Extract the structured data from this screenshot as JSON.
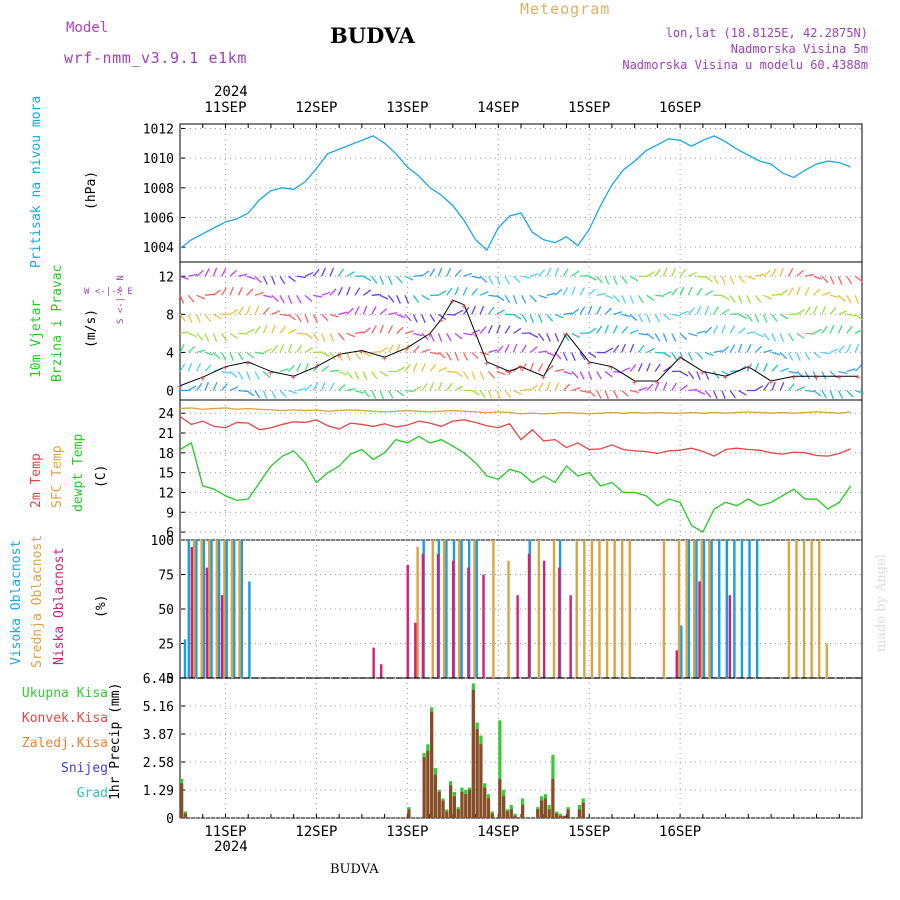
{
  "header": {
    "model_label": "Model",
    "model_name": "wrf-nmm_v3.9.1 e1km",
    "station": "BUDVA",
    "meteogram": "Meteogram",
    "lonlat": "lon,lat (18.8125E, 42.2875N)",
    "elevation": "Nadmorska Visina 5m",
    "model_elevation": "Nadmorska Visina u modelu 60.4388m",
    "year_top": "2024",
    "year_bottom": "2024",
    "footer_station": "BUDVA",
    "credit": "made by Angel"
  },
  "colors": {
    "pressure": "#1aa6e6",
    "temp2m": "#e84545",
    "sfc_temp": "#d9a441",
    "dewpoint": "#22cc22",
    "cloud_high": "#1a9be6",
    "cloud_mid": "#d9a441",
    "cloud_low": "#d0207a",
    "precip_total": "#33cc33",
    "precip_conv": "#8b4a2a",
    "model_text": "#b040c8",
    "meteogram_text": "#e0b060",
    "info_text": "#a040c0"
  },
  "panels": {
    "pressure": {
      "label1": "Pritisak na nivou mora",
      "unit": "(hPa)"
    },
    "wind": {
      "label1": "10m Vjetar",
      "label2": "Brzina i Pravac",
      "unit": "(m/s)",
      "compass": "W <-|-> E",
      "compass_ns": "S <-|-> N"
    },
    "temp": {
      "label1": "2m Temp",
      "label2": "SFC Temp",
      "label3": "dewpt Temp",
      "unit": "(C)"
    },
    "cloud": {
      "label1": "Visoka Oblacnost",
      "label2": "Srednja Oblacnost",
      "label3": "Niska Oblacnost",
      "unit": "(%)"
    },
    "precip": {
      "unit": "1hr Precip (mm)",
      "legend": [
        "Ukupna Kisa",
        "Konvek.Kisa",
        "Zaledj.Kisa",
        "Snijeg",
        "Grad"
      ],
      "legend_colors": [
        "#33cc33",
        "#e84545",
        "#f08030",
        "#4040e0",
        "#30c0c0"
      ]
    }
  },
  "chart_data": {
    "type": "line",
    "x_unit": "hours from 2024-09-10 12:00 UTC",
    "days": [
      "11SEP",
      "12SEP",
      "13SEP",
      "14SEP",
      "15SEP",
      "16SEP"
    ],
    "pressure": {
      "ylim": [
        1003,
        1012.3
      ],
      "ticks": [
        "1004",
        "1006",
        "1008",
        "1010",
        "1012"
      ],
      "x": [
        0,
        3,
        6,
        9,
        12,
        15,
        18,
        21,
        24,
        27,
        30,
        33,
        36,
        39,
        42,
        45,
        48,
        51,
        54,
        57,
        60,
        63,
        66,
        69,
        72,
        75,
        78,
        81,
        84,
        87,
        90,
        93,
        96,
        99,
        102,
        105,
        108,
        111,
        114,
        117,
        120,
        123,
        126,
        129,
        132,
        135,
        138,
        141,
        144,
        147,
        150,
        153,
        156,
        159,
        162,
        165,
        168,
        171,
        174,
        177
      ],
      "y": [
        1003.9,
        1004.5,
        1004.9,
        1005.3,
        1005.7,
        1005.9,
        1006.3,
        1007.2,
        1007.8,
        1008.0,
        1007.9,
        1008.4,
        1009.3,
        1010.3,
        1010.6,
        1010.9,
        1011.2,
        1011.5,
        1011.0,
        1010.3,
        1009.4,
        1008.8,
        1008.0,
        1007.5,
        1006.8,
        1005.8,
        1004.5,
        1003.8,
        1005.3,
        1006.1,
        1006.3,
        1005.0,
        1004.5,
        1004.3,
        1004.7,
        1004.1,
        1005.2,
        1006.8,
        1008.2,
        1009.2,
        1009.8,
        1010.5,
        1010.9,
        1011.3,
        1011.2,
        1010.8,
        1011.2,
        1011.5,
        1011.1,
        1010.6,
        1010.2,
        1009.8,
        1009.6,
        1009.0,
        1008.7,
        1009.2,
        1009.6,
        1009.8,
        1009.7,
        1009.4
      ]
    },
    "wind": {
      "ylim": [
        -1,
        13.5
      ],
      "ticks": [
        "0",
        "4",
        "8",
        "12"
      ],
      "x": [
        0,
        6,
        12,
        18,
        24,
        30,
        36,
        42,
        48,
        54,
        60,
        66,
        69,
        72,
        75,
        78,
        81,
        84,
        87,
        90,
        96,
        102,
        108,
        114,
        120,
        126,
        132,
        138,
        144,
        150,
        156,
        162,
        168,
        174,
        179
      ],
      "y": [
        0.5,
        1.4,
        2.5,
        3.0,
        2.0,
        1.5,
        2.5,
        3.8,
        4.2,
        3.5,
        4.5,
        6.0,
        7.5,
        9.5,
        9.0,
        6.0,
        3.0,
        2.5,
        2.0,
        2.5,
        1.5,
        6.0,
        3.0,
        2.5,
        1.0,
        1.0,
        3.5,
        2.0,
        1.5,
        2.5,
        1.0,
        1.5,
        1.5,
        1.5,
        1.5
      ],
      "arrow_colors": [
        "#33a0ff",
        "#50d0ff",
        "#40e080",
        "#a0e040",
        "#f0c040",
        "#ff6060",
        "#c040ff",
        "#6040ff",
        "#20c0d0"
      ]
    },
    "temperature": {
      "ylim": [
        4.8,
        26
      ],
      "ticks": [
        "6",
        "9",
        "12",
        "15",
        "18",
        "21",
        "24"
      ],
      "x": [
        0,
        3,
        6,
        9,
        12,
        15,
        18,
        21,
        24,
        27,
        30,
        33,
        36,
        39,
        42,
        45,
        48,
        51,
        54,
        57,
        60,
        63,
        66,
        69,
        72,
        75,
        78,
        81,
        84,
        87,
        90,
        93,
        96,
        99,
        102,
        105,
        108,
        111,
        114,
        117,
        120,
        123,
        126,
        129,
        132,
        135,
        138,
        141,
        144,
        147,
        150,
        153,
        156,
        159,
        162,
        165,
        168,
        171,
        174,
        177
      ],
      "temp2m": [
        23.5,
        22.3,
        22.8,
        22.0,
        21.8,
        22.6,
        22.5,
        21.5,
        21.8,
        22.3,
        22.7,
        22.6,
        23.0,
        22.1,
        21.6,
        22.5,
        22.3,
        22.0,
        22.4,
        21.9,
        22.2,
        22.8,
        22.5,
        22.0,
        22.8,
        23.0,
        22.6,
        22.1,
        21.8,
        22.4,
        20.0,
        21.5,
        19.8,
        20.0,
        18.8,
        19.5,
        18.5,
        18.6,
        19.2,
        18.5,
        18.3,
        18.2,
        17.9,
        18.3,
        18.4,
        18.7,
        18.2,
        17.5,
        18.5,
        18.7,
        18.5,
        18.4,
        18.0,
        17.8,
        18.1,
        18.0,
        17.6,
        17.5,
        17.9,
        18.6
      ],
      "sfc_temp": [
        24.7,
        24.8,
        24.6,
        24.7,
        24.8,
        24.6,
        24.7,
        24.6,
        24.5,
        24.4,
        24.5,
        24.4,
        24.5,
        24.3,
        24.4,
        24.5,
        24.4,
        24.3,
        24.2,
        24.3,
        24.4,
        24.3,
        24.2,
        24.3,
        24.4,
        24.3,
        24.2,
        24.1,
        24.2,
        24.1,
        23.9,
        24.0,
        23.9,
        24.0,
        24.1,
        24.0,
        23.9,
        24.0,
        24.1,
        24.0,
        24.1,
        24.0,
        24.1,
        24.0,
        24.0,
        24.1,
        24.0,
        24.1,
        24.0,
        24.1,
        24.2,
        24.1,
        24.0,
        24.1,
        24.0,
        24.1,
        24.2,
        24.1,
        24.0,
        24.2
      ],
      "dewpoint": [
        18.5,
        19.5,
        13.0,
        12.5,
        11.5,
        10.8,
        11.0,
        13.5,
        16.0,
        17.5,
        18.3,
        16.5,
        13.5,
        15.0,
        16.0,
        17.8,
        18.5,
        17.0,
        18.0,
        20.0,
        19.5,
        20.5,
        19.5,
        20.0,
        19.0,
        18.0,
        16.5,
        14.5,
        14.0,
        15.5,
        15.0,
        13.5,
        14.5,
        13.5,
        16.0,
        14.5,
        15.0,
        13.0,
        13.5,
        12.0,
        12.0,
        11.5,
        10.0,
        11.0,
        10.5,
        7.0,
        6.0,
        9.5,
        10.5,
        10.0,
        11.0,
        10.0,
        10.5,
        11.5,
        12.5,
        11.0,
        11.0,
        9.5,
        10.5,
        13.0
      ]
    },
    "cloud": {
      "ylim": [
        0,
        100
      ],
      "ticks": [
        "0",
        "25",
        "50",
        "75",
        "100"
      ],
      "high": [
        {
          "x": 1,
          "v": 28
        },
        {
          "x": 2,
          "v": 100
        },
        {
          "x": 4,
          "v": 100
        },
        {
          "x": 6,
          "v": 100
        },
        {
          "x": 8,
          "v": 100
        },
        {
          "x": 10,
          "v": 100
        },
        {
          "x": 12,
          "v": 100
        },
        {
          "x": 14,
          "v": 100
        },
        {
          "x": 16,
          "v": 100
        },
        {
          "x": 18,
          "v": 70
        },
        {
          "x": 64,
          "v": 100
        },
        {
          "x": 68,
          "v": 100
        },
        {
          "x": 70,
          "v": 100
        },
        {
          "x": 72,
          "v": 100
        },
        {
          "x": 74,
          "v": 100
        },
        {
          "x": 76,
          "v": 100
        },
        {
          "x": 78,
          "v": 100
        },
        {
          "x": 92,
          "v": 100
        },
        {
          "x": 100,
          "v": 100
        },
        {
          "x": 132,
          "v": 38
        },
        {
          "x": 134,
          "v": 100
        },
        {
          "x": 136,
          "v": 100
        },
        {
          "x": 138,
          "v": 100
        },
        {
          "x": 140,
          "v": 100
        },
        {
          "x": 142,
          "v": 100
        },
        {
          "x": 144,
          "v": 100
        },
        {
          "x": 146,
          "v": 100
        },
        {
          "x": 148,
          "v": 100
        },
        {
          "x": 150,
          "v": 100
        },
        {
          "x": 152,
          "v": 100
        }
      ],
      "mid": [
        {
          "x": 3,
          "v": 100
        },
        {
          "x": 5,
          "v": 100
        },
        {
          "x": 7,
          "v": 100
        },
        {
          "x": 9,
          "v": 100
        },
        {
          "x": 11,
          "v": 100
        },
        {
          "x": 13,
          "v": 100
        },
        {
          "x": 15,
          "v": 100
        },
        {
          "x": 62,
          "v": 95
        },
        {
          "x": 66,
          "v": 100
        },
        {
          "x": 69,
          "v": 100
        },
        {
          "x": 73,
          "v": 100
        },
        {
          "x": 77,
          "v": 100
        },
        {
          "x": 82,
          "v": 100
        },
        {
          "x": 86,
          "v": 85
        },
        {
          "x": 94,
          "v": 100
        },
        {
          "x": 98,
          "v": 100
        },
        {
          "x": 104,
          "v": 100
        },
        {
          "x": 106,
          "v": 100
        },
        {
          "x": 108,
          "v": 100
        },
        {
          "x": 110,
          "v": 100
        },
        {
          "x": 112,
          "v": 100
        },
        {
          "x": 114,
          "v": 100
        },
        {
          "x": 116,
          "v": 100
        },
        {
          "x": 118,
          "v": 100
        },
        {
          "x": 127,
          "v": 100
        },
        {
          "x": 131,
          "v": 100
        },
        {
          "x": 133,
          "v": 100
        },
        {
          "x": 135,
          "v": 100
        },
        {
          "x": 137,
          "v": 100
        },
        {
          "x": 139,
          "v": 100
        },
        {
          "x": 160,
          "v": 100
        },
        {
          "x": 162,
          "v": 100
        },
        {
          "x": 164,
          "v": 100
        },
        {
          "x": 166,
          "v": 100
        },
        {
          "x": 168,
          "v": 100
        },
        {
          "x": 170,
          "v": 25
        }
      ],
      "low": [
        {
          "x": 2,
          "v": 95
        },
        {
          "x": 6,
          "v": 80
        },
        {
          "x": 10,
          "v": 60
        },
        {
          "x": 50,
          "v": 22
        },
        {
          "x": 52,
          "v": 10
        },
        {
          "x": 59,
          "v": 82
        },
        {
          "x": 61,
          "v": 40
        },
        {
          "x": 63,
          "v": 90
        },
        {
          "x": 67,
          "v": 90
        },
        {
          "x": 71,
          "v": 85
        },
        {
          "x": 75,
          "v": 80
        },
        {
          "x": 79,
          "v": 75
        },
        {
          "x": 88,
          "v": 60
        },
        {
          "x": 91,
          "v": 90
        },
        {
          "x": 95,
          "v": 85
        },
        {
          "x": 99,
          "v": 80
        },
        {
          "x": 102,
          "v": 60
        },
        {
          "x": 130,
          "v": 20
        },
        {
          "x": 136,
          "v": 70
        },
        {
          "x": 144,
          "v": 60
        }
      ]
    },
    "precip": {
      "ylim": [
        0,
        6.45
      ],
      "ticks": [
        "0",
        "1.29",
        "2.58",
        "3.87",
        "5.16",
        "6.45"
      ],
      "x": [
        0,
        1,
        60,
        64,
        65,
        66,
        67,
        68,
        69,
        70,
        71,
        72,
        73,
        74,
        75,
        76,
        77,
        78,
        79,
        80,
        81,
        82,
        84,
        85,
        86,
        87,
        88,
        90,
        94,
        95,
        96,
        97,
        98,
        99,
        100,
        101,
        102,
        105,
        106
      ],
      "total": [
        1.8,
        0.3,
        0.5,
        3.0,
        3.4,
        5.1,
        2.3,
        1.3,
        0.9,
        0.4,
        1.7,
        1.2,
        0.5,
        1.4,
        1.3,
        1.4,
        6.2,
        4.4,
        3.8,
        1.6,
        1.1,
        0.3,
        4.5,
        1.3,
        0.4,
        0.6,
        0.2,
        0.9,
        0.5,
        1.0,
        1.1,
        0.6,
        2.9,
        0.3,
        0.2,
        0.1,
        0.5,
        0.6,
        0.9
      ],
      "convective": [
        1.6,
        0.2,
        0.4,
        2.8,
        3.1,
        4.9,
        2.0,
        1.2,
        0.8,
        0.3,
        1.5,
        1.0,
        0.4,
        1.2,
        1.1,
        1.3,
        5.9,
        4.1,
        3.4,
        1.4,
        0.9,
        0.2,
        1.8,
        1.0,
        0.3,
        0.4,
        0.1,
        0.6,
        0.4,
        0.8,
        0.9,
        0.4,
        1.8,
        0.2,
        0.1,
        0.1,
        0.4,
        0.4,
        0.7
      ]
    }
  }
}
